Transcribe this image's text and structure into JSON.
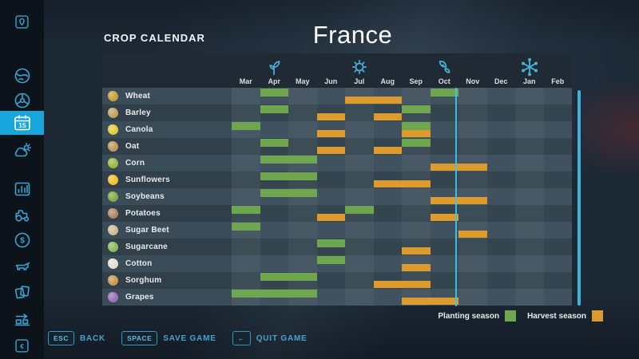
{
  "header": {
    "menu_title": "CROP CALENDAR",
    "map_title": "France"
  },
  "sidebar": {
    "calendar_day": "15",
    "items": [
      {
        "name": "map-pin",
        "active": false
      },
      {
        "name": "globe",
        "active": false
      },
      {
        "name": "steering-wheel",
        "active": false
      },
      {
        "name": "calendar",
        "active": true
      },
      {
        "name": "weather",
        "active": false
      },
      {
        "name": "statistics",
        "active": false
      },
      {
        "name": "tractor",
        "active": false
      },
      {
        "name": "finances",
        "active": false
      },
      {
        "name": "animals",
        "active": false
      },
      {
        "name": "contracts",
        "active": false
      },
      {
        "name": "production",
        "active": false
      },
      {
        "name": "currency",
        "active": false
      }
    ]
  },
  "calendar": {
    "months": [
      "Mar",
      "Apr",
      "May",
      "Jun",
      "Jul",
      "Aug",
      "Sep",
      "Oct",
      "Nov",
      "Dec",
      "Jan",
      "Feb"
    ],
    "seasons": [
      {
        "name": "spring",
        "icon": "sprout-icon",
        "month": "Apr"
      },
      {
        "name": "summer",
        "icon": "sun-icon",
        "month": "Jul"
      },
      {
        "name": "autumn",
        "icon": "leaf-icon",
        "month": "Oct"
      },
      {
        "name": "winter",
        "icon": "snowflake-icon",
        "month": "Jan"
      }
    ],
    "current_day_month": "Oct",
    "crops": [
      {
        "name": "Wheat",
        "icon": "wheat-icon",
        "color": "#c9a03f",
        "plant": [
          "Apr",
          "Oct"
        ],
        "harvest": [
          "Jul",
          "Aug"
        ]
      },
      {
        "name": "Barley",
        "icon": "barley-icon",
        "color": "#bda463",
        "plant": [
          "Apr",
          "Sep"
        ],
        "harvest": [
          "Jun",
          "Aug"
        ]
      },
      {
        "name": "Canola",
        "icon": "canola-icon",
        "color": "#e3cb3d",
        "plant": [
          "Mar",
          "Sep"
        ],
        "harvest": [
          "Jun",
          "Sep"
        ]
      },
      {
        "name": "Oat",
        "icon": "oat-icon",
        "color": "#c19a5e",
        "plant": [
          "Apr",
          "Sep"
        ],
        "harvest": [
          "Jun",
          "Aug"
        ]
      },
      {
        "name": "Corn",
        "icon": "corn-icon",
        "color": "#9db93f",
        "plant": [
          "Apr",
          "May"
        ],
        "harvest": [
          "Oct",
          "Nov"
        ]
      },
      {
        "name": "Sunflowers",
        "icon": "sunflower-icon",
        "color": "#efc32f",
        "plant": [
          "Apr",
          "May"
        ],
        "harvest": [
          "Aug",
          "Sep"
        ]
      },
      {
        "name": "Soybeans",
        "icon": "soybean-icon",
        "color": "#83a94c",
        "plant": [
          "Apr",
          "May"
        ],
        "harvest": [
          "Oct",
          "Nov"
        ]
      },
      {
        "name": "Potatoes",
        "icon": "potato-icon",
        "color": "#b08968",
        "plant": [
          "Mar",
          "Jul"
        ],
        "harvest": [
          "Jun",
          "Oct"
        ]
      },
      {
        "name": "Sugar Beet",
        "icon": "sugar-beet-icon",
        "color": "#cdbb9b",
        "plant": [
          "Mar"
        ],
        "harvest": [
          "Nov"
        ]
      },
      {
        "name": "Sugarcane",
        "icon": "sugarcane-icon",
        "color": "#8cb85c",
        "plant": [
          "Jun"
        ],
        "harvest": [
          "Sep"
        ]
      },
      {
        "name": "Cotton",
        "icon": "cotton-icon",
        "color": "#e4ded2",
        "plant": [
          "Jun"
        ],
        "harvest": [
          "Sep"
        ]
      },
      {
        "name": "Sorghum",
        "icon": "sorghum-icon",
        "color": "#c79b52",
        "plant": [
          "Apr",
          "May"
        ],
        "harvest": [
          "Aug",
          "Sep"
        ]
      },
      {
        "name": "Grapes",
        "icon": "grapes-icon",
        "color": "#9a74b5",
        "plant": [
          "Mar",
          "Apr",
          "May"
        ],
        "harvest": [
          "Sep",
          "Oct"
        ]
      }
    ]
  },
  "legend": {
    "items": [
      {
        "name": "planting-legend",
        "label": "Planting season",
        "color": "#6fa650"
      },
      {
        "name": "harvest-legend",
        "label": "Harvest season",
        "color": "#dd9b2e"
      }
    ]
  },
  "footer": {
    "buttons": [
      {
        "name": "back-button",
        "key": "ESC",
        "label": "BACK"
      },
      {
        "name": "save-game-button",
        "key": "SPACE",
        "label": "SAVE GAME"
      },
      {
        "name": "quit-game-button",
        "key": "←",
        "label": "QUIT GAME"
      }
    ]
  },
  "colors": {
    "accent": "#35a9d4",
    "planting": "#6fa650",
    "harvest": "#dd9b2e"
  }
}
